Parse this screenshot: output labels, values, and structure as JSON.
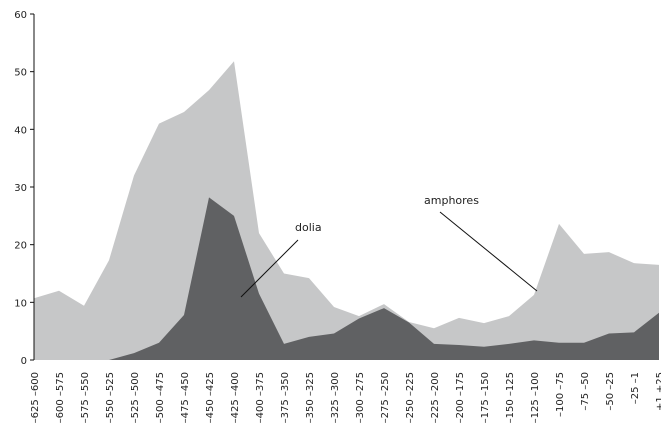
{
  "chart_data": {
    "type": "area",
    "categories": [
      "–625 –600",
      "–600 –575",
      "–575 –550",
      "–550 –525",
      "–525 –500",
      "–500 –475",
      "–475 –450",
      "–450 –425",
      "–425 –400",
      "–400 –375",
      "–375 –350",
      "–350 –325",
      "–325 –300",
      "–300 –275",
      "–275 –250",
      "–250 –225",
      "–225 –200",
      "–200 –175",
      "–175 –150",
      "–150 –125",
      "–125 –100",
      "–100 –75",
      "–75 –50",
      "–50 –25",
      "–25 –1",
      "+1 +25"
    ],
    "series": [
      {
        "name": "amphores",
        "color": "#c6c7c8",
        "values": [
          10.7,
          12,
          9.4,
          17.3,
          32,
          41,
          43,
          46.8,
          51.8,
          22,
          15,
          14.2,
          9.2,
          7.6,
          9.7,
          6.6,
          5.5,
          7.3,
          6.4,
          7.6,
          11.3,
          23.6,
          18.4,
          18.7,
          16.8,
          16.5
        ]
      },
      {
        "name": "dolia",
        "color": "#606163",
        "values": [
          0,
          0,
          0,
          0,
          1.2,
          3,
          7.8,
          28.2,
          25,
          11.5,
          2.8,
          4,
          4.6,
          7.2,
          9,
          6.5,
          2.8,
          2.6,
          2.3,
          2.8,
          3.4,
          3,
          3,
          4.6,
          4.8,
          8.2
        ]
      }
    ],
    "ylim": [
      0,
      60
    ],
    "yticks": [
      0,
      10,
      20,
      30,
      40,
      50,
      60
    ]
  }
}
